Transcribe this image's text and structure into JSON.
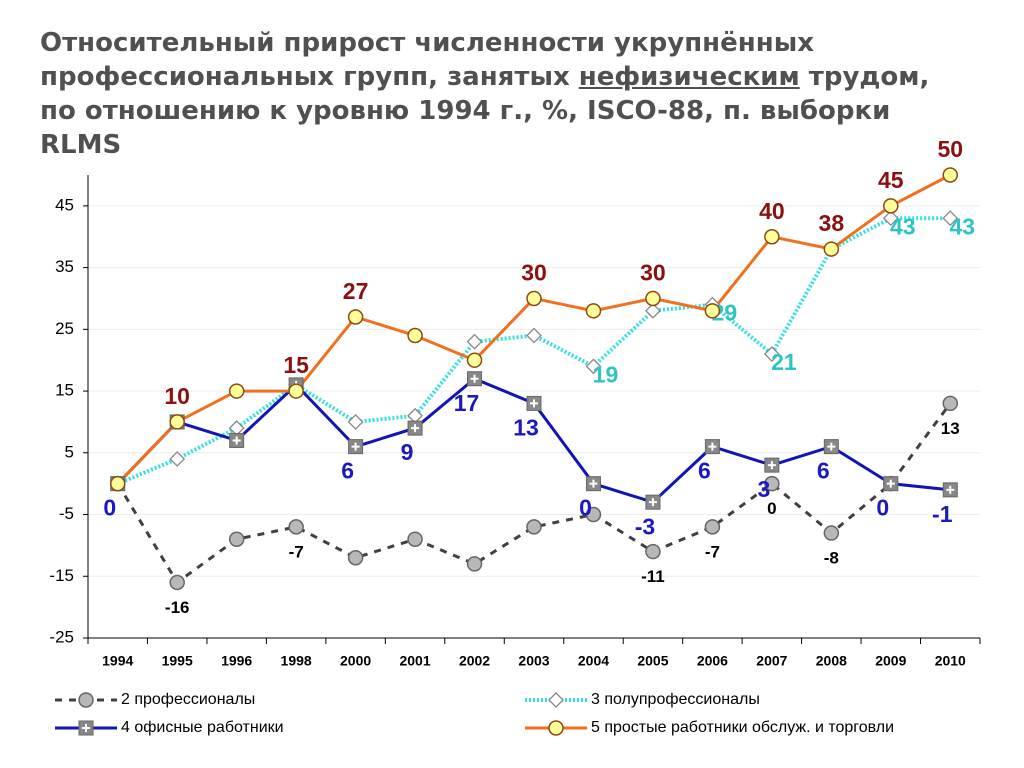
{
  "chart_data": {
    "type": "line",
    "title_parts": [
      "Относительный прирост численности укрупнённых профессиональных групп, занятых ",
      "нефизическим",
      " трудом, по отношению к уровню 1994 г., %, ISCO-88, п. выборки RLMS"
    ],
    "categories": [
      "1994",
      "1995",
      "1996",
      "1998",
      "2000",
      "2001",
      "2002",
      "2003",
      "2004",
      "2005",
      "2006",
      "2007",
      "2008",
      "2009",
      "2010"
    ],
    "ylim": [
      -25,
      50
    ],
    "yticks": [
      45,
      35,
      25,
      15,
      5,
      -5,
      -15,
      -25
    ],
    "grid": true,
    "series": [
      {
        "name": "2  профессионалы",
        "color": "#404040",
        "marker": "circle",
        "values": [
          0,
          -16,
          -9,
          -7,
          -12,
          -9,
          -13,
          -7,
          -5,
          -11,
          -7,
          0,
          -8,
          0,
          13
        ],
        "value_labels": [
          null,
          "-16",
          null,
          "-7",
          null,
          null,
          null,
          null,
          null,
          "-11",
          "-7",
          "0",
          "-8",
          null,
          "13"
        ]
      },
      {
        "name": "3  полупрофессионалы",
        "color": "#33e0e0",
        "marker": "diamond",
        "values": [
          0,
          4,
          9,
          16,
          10,
          11,
          23,
          24,
          19,
          28,
          29,
          21,
          38,
          43,
          43
        ],
        "value_labels": [
          null,
          null,
          null,
          null,
          null,
          null,
          null,
          null,
          "19",
          null,
          "29",
          "21",
          null,
          "43",
          "43"
        ]
      },
      {
        "name": "4  офисные работники",
        "color": "#1414b4",
        "marker": "square",
        "values": [
          0,
          10,
          7,
          16,
          6,
          9,
          17,
          13,
          0,
          -3,
          6,
          3,
          6,
          0,
          -1
        ],
        "value_labels": [
          "0",
          null,
          null,
          null,
          "6",
          "9",
          "17",
          "13",
          "0",
          "-3",
          "6",
          "3",
          "6",
          "0",
          "-1"
        ]
      },
      {
        "name": "5  простые работники обслуж. и торговли",
        "color": "#f07020",
        "marker": "circle-yellow",
        "values": [
          0,
          10,
          15,
          15,
          27,
          24,
          20,
          30,
          28,
          30,
          28,
          40,
          38,
          45,
          50
        ],
        "value_labels": [
          null,
          "10",
          null,
          "15",
          "27",
          null,
          null,
          "30",
          null,
          "30",
          null,
          "40",
          "38",
          "45",
          "50"
        ]
      }
    ]
  }
}
